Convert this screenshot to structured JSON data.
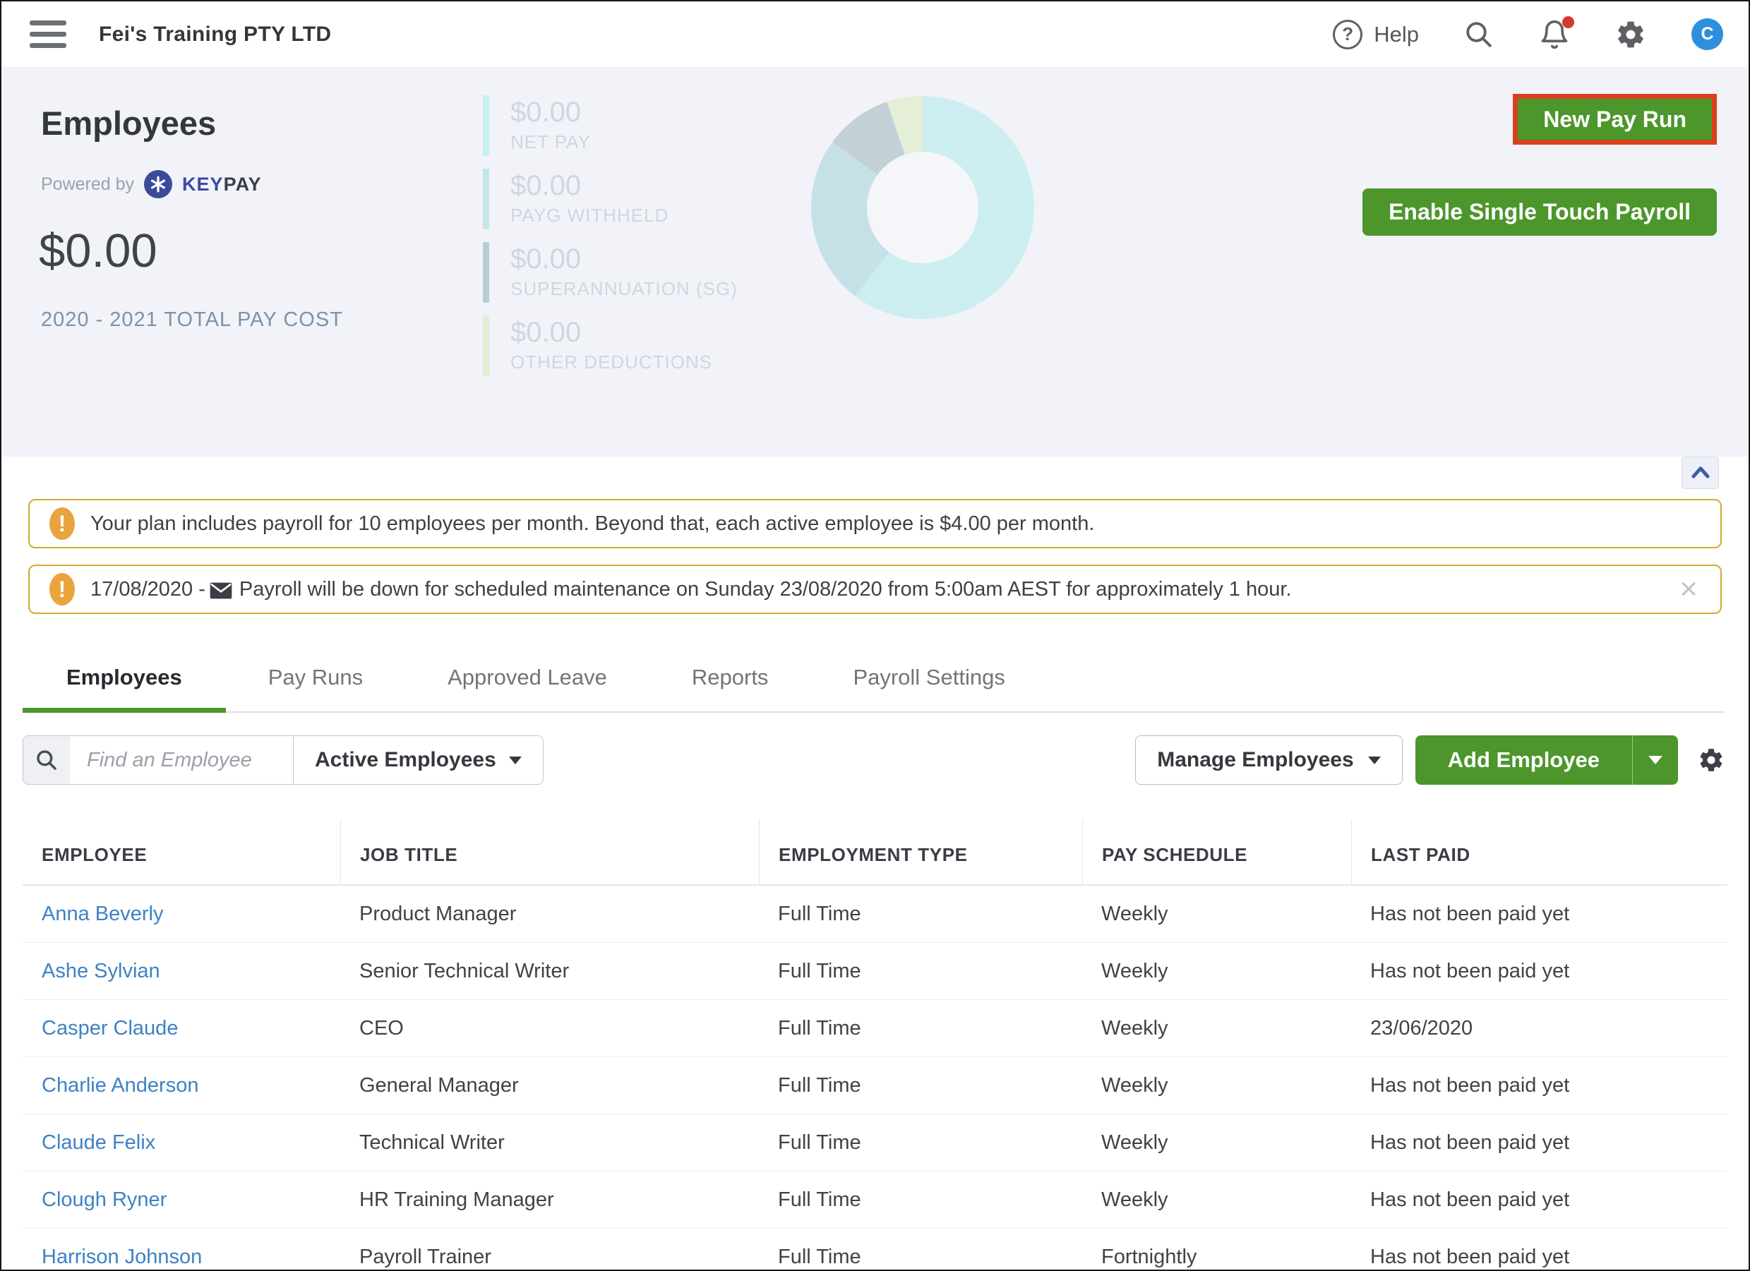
{
  "topbar": {
    "company": "Fei's Training PTY LTD",
    "help_label": "Help",
    "avatar_initial": "C"
  },
  "hero": {
    "title": "Employees",
    "powered_by": "Powered by",
    "brand": {
      "key": "KEY",
      "pay": "PAY"
    },
    "total_amount": "$0.00",
    "total_caption": "2020 - 2021 TOTAL PAY COST",
    "stats": [
      {
        "value": "$0.00",
        "label": "NET PAY",
        "color": "#c7f0ec"
      },
      {
        "value": "$0.00",
        "label": "PAYG WITHHELD",
        "color": "#c3e7e9"
      },
      {
        "value": "$0.00",
        "label": "SUPERANNUATION (SG)",
        "color": "#b7ced3"
      },
      {
        "value": "$0.00",
        "label": "OTHER DEDUCTIONS",
        "color": "#e2eed2"
      }
    ],
    "buttons": {
      "new_pay_run": "New Pay Run",
      "enable_stp": "Enable Single Touch Payroll"
    },
    "highlight_color": "#d9401c",
    "accent_green": "#4c962b"
  },
  "chart_data": {
    "type": "pie",
    "title": "Pay cost breakdown donut (all values $0.00)",
    "legend_position": "none",
    "segments": [
      {
        "label": "NET PAY",
        "percent": 60.3,
        "color": "#cdeef0"
      },
      {
        "label": "PAYG WITHHELD",
        "percent": 24.7,
        "color": "#c6e0e7"
      },
      {
        "label": "SUPERANNUATION (SG)",
        "percent": 9.8,
        "color": "#c3d1d6"
      },
      {
        "label": "OTHER DEDUCTIONS",
        "percent": 5.2,
        "color": "#e5eed6"
      }
    ]
  },
  "banners": [
    {
      "text": "Your plan includes payroll for 10 employees per month. Beyond that, each active employee is $4.00 per month."
    },
    {
      "prefix": "17/08/2020 -",
      "text": "Payroll will be down for scheduled maintenance on Sunday 23/08/2020 from 5:00am AEST for approximately 1 hour.",
      "close_glyph": "×"
    }
  ],
  "tabs": [
    {
      "label": "Employees",
      "active": true
    },
    {
      "label": "Pay Runs",
      "active": false
    },
    {
      "label": "Approved Leave",
      "active": false
    },
    {
      "label": "Reports",
      "active": false
    },
    {
      "label": "Payroll Settings",
      "active": false
    }
  ],
  "toolbar": {
    "search_placeholder": "Find an Employee",
    "filter_label": "Active Employees",
    "manage_label": "Manage Employees",
    "add_label": "Add Employee"
  },
  "table": {
    "columns": [
      "EMPLOYEE",
      "JOB TITLE",
      "EMPLOYMENT TYPE",
      "PAY SCHEDULE",
      "LAST PAID"
    ],
    "rows": [
      [
        "Anna Beverly",
        "Product Manager",
        "Full Time",
        "Weekly",
        "Has not been paid yet"
      ],
      [
        "Ashe Sylvian",
        "Senior Technical Writer",
        "Full Time",
        "Weekly",
        "Has not been paid yet"
      ],
      [
        "Casper Claude",
        "CEO",
        "Full Time",
        "Weekly",
        "23/06/2020"
      ],
      [
        "Charlie Anderson",
        "General Manager",
        "Full Time",
        "Weekly",
        "Has not been paid yet"
      ],
      [
        "Claude Felix",
        "Technical Writer",
        "Full Time",
        "Weekly",
        "Has not been paid yet"
      ],
      [
        "Clough Ryner",
        "HR Training Manager",
        "Full Time",
        "Weekly",
        "Has not been paid yet"
      ],
      [
        "Harrison Johnson",
        "Payroll Trainer",
        "Full Time",
        "Fortnightly",
        "Has not been paid yet"
      ]
    ]
  }
}
